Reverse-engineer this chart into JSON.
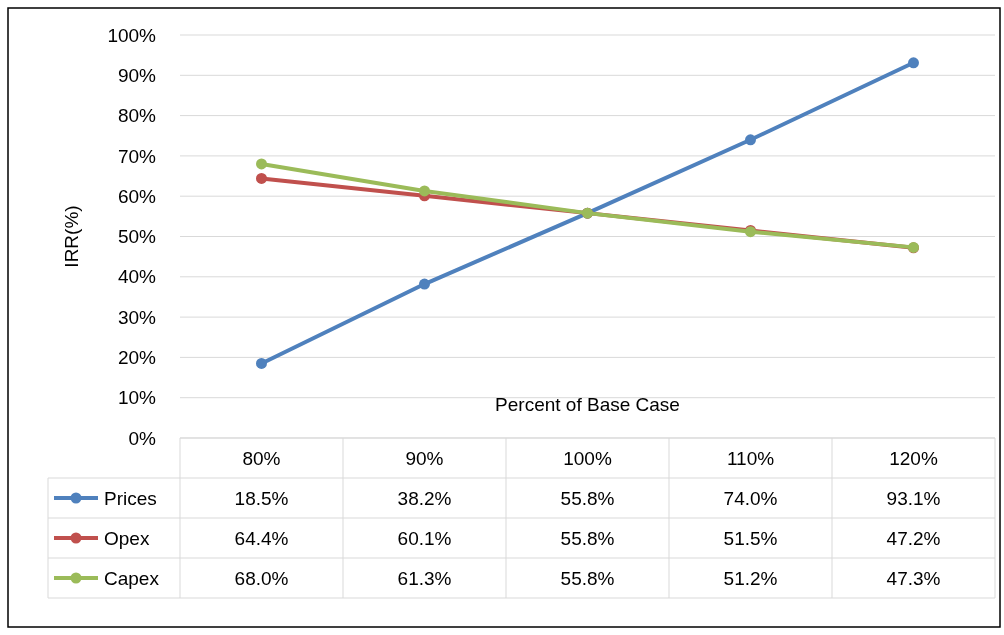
{
  "chart_data": {
    "type": "line",
    "xlabel": "Percent of Base Case",
    "ylabel": "IRR(%)",
    "categories": [
      "80%",
      "90%",
      "100%",
      "110%",
      "120%"
    ],
    "ylim": [
      0,
      100
    ],
    "yticks": [
      {
        "value": 0,
        "label": "0%"
      },
      {
        "value": 10,
        "label": "10%"
      },
      {
        "value": 20,
        "label": "20%"
      },
      {
        "value": 30,
        "label": "30%"
      },
      {
        "value": 40,
        "label": "40%"
      },
      {
        "value": 50,
        "label": "50%"
      },
      {
        "value": 60,
        "label": "60%"
      },
      {
        "value": 70,
        "label": "70%"
      },
      {
        "value": 80,
        "label": "80%"
      },
      {
        "value": 90,
        "label": "90%"
      },
      {
        "value": 100,
        "label": "100%"
      }
    ],
    "grid": "y",
    "marker": "circle",
    "line_style": "solid",
    "legend": "bottom",
    "series": [
      {
        "name": "Prices",
        "color": "#4f81bd",
        "values": [
          18.5,
          38.2,
          55.8,
          74.0,
          93.1
        ],
        "value_labels": [
          "18.5%",
          "38.2%",
          "55.8%",
          "74.0%",
          "93.1%"
        ]
      },
      {
        "name": "Opex",
        "color": "#c0504d",
        "values": [
          64.4,
          60.1,
          55.8,
          51.5,
          47.2
        ],
        "value_labels": [
          "64.4%",
          "60.1%",
          "55.8%",
          "51.5%",
          "47.2%"
        ]
      },
      {
        "name": "Capex",
        "color": "#9bbb59",
        "values": [
          68.0,
          61.3,
          55.8,
          51.2,
          47.3
        ],
        "value_labels": [
          "68.0%",
          "61.3%",
          "55.8%",
          "51.2%",
          "47.3%"
        ]
      }
    ]
  }
}
